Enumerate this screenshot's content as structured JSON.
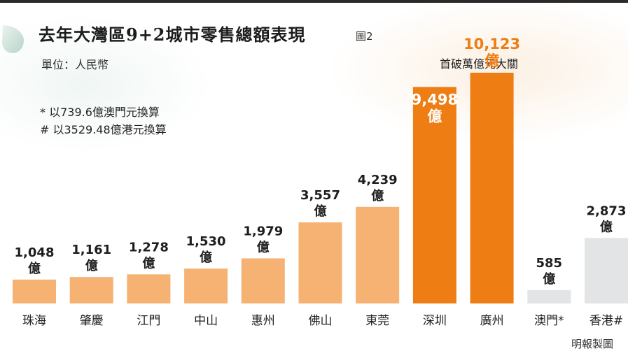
{
  "header": {
    "title": "去年大灣區9+2城市零售總額表現",
    "figure_label": "圖2",
    "unit": "單位：人民幣"
  },
  "notes": [
    "* 以739.6億澳門元換算",
    "# 以3529.48億港元換算"
  ],
  "highlight_text": "首破萬億元大關",
  "credit": "明報製圖",
  "colors": {
    "light_orange": "#f5b272",
    "dark_orange": "#ee7d14",
    "grey": "#e3e4e6",
    "label_dark": "#1e1e1e",
    "label_white": "#ffffff",
    "label_orange": "#ee7d14"
  },
  "chart_data": {
    "type": "bar",
    "unit_word": "億",
    "categories": [
      "珠海",
      "肇慶",
      "江門",
      "中山",
      "惠州",
      "佛山",
      "東莞",
      "深圳",
      "廣州",
      "澳門*",
      "香港#"
    ],
    "values": [
      1048,
      1161,
      1278,
      1530,
      1979,
      3557,
      4239,
      9498,
      10123,
      585,
      2873
    ],
    "value_labels": [
      "1,048",
      "1,161",
      "1,278",
      "1,530",
      "1,979",
      "3,557",
      "4,239",
      "9,498",
      "10,123",
      "585",
      "2,873"
    ],
    "bar_color": [
      "light_orange",
      "light_orange",
      "light_orange",
      "light_orange",
      "light_orange",
      "light_orange",
      "light_orange",
      "dark_orange",
      "dark_orange",
      "grey",
      "grey"
    ],
    "label_placement": [
      "above",
      "above",
      "above",
      "above",
      "above",
      "above",
      "above",
      "inside",
      "above",
      "above",
      "above"
    ],
    "label_color": [
      "label_dark",
      "label_dark",
      "label_dark",
      "label_dark",
      "label_dark",
      "label_dark",
      "label_dark",
      "label_white",
      "label_orange",
      "label_dark",
      "label_dark"
    ],
    "ylim": [
      0,
      10123
    ],
    "grid": false,
    "legend": "none"
  }
}
